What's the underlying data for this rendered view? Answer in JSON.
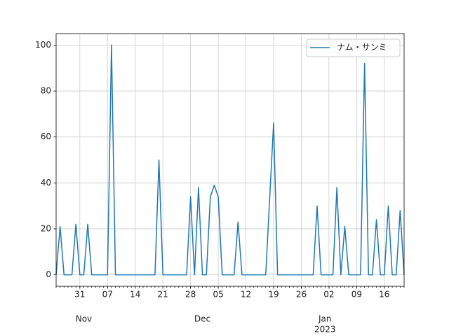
{
  "chart_data": {
    "type": "line",
    "x": [
      "2022-10-25",
      "2022-10-26",
      "2022-10-27",
      "2022-10-28",
      "2022-10-29",
      "2022-10-30",
      "2022-10-31",
      "2022-11-01",
      "2022-11-02",
      "2022-11-03",
      "2022-11-04",
      "2022-11-05",
      "2022-11-06",
      "2022-11-07",
      "2022-11-08",
      "2022-11-09",
      "2022-11-10",
      "2022-11-11",
      "2022-11-12",
      "2022-11-13",
      "2022-11-14",
      "2022-11-15",
      "2022-11-16",
      "2022-11-17",
      "2022-11-18",
      "2022-11-19",
      "2022-11-20",
      "2022-11-21",
      "2022-11-22",
      "2022-11-23",
      "2022-11-24",
      "2022-11-25",
      "2022-11-26",
      "2022-11-27",
      "2022-11-28",
      "2022-11-29",
      "2022-11-30",
      "2022-12-01",
      "2022-12-02",
      "2022-12-03",
      "2022-12-04",
      "2022-12-05",
      "2022-12-06",
      "2022-12-07",
      "2022-12-08",
      "2022-12-09",
      "2022-12-10",
      "2022-12-11",
      "2022-12-12",
      "2022-12-13",
      "2022-12-14",
      "2022-12-15",
      "2022-12-16",
      "2022-12-17",
      "2022-12-18",
      "2022-12-19",
      "2022-12-20",
      "2022-12-21",
      "2022-12-22",
      "2022-12-23",
      "2022-12-24",
      "2022-12-25",
      "2022-12-26",
      "2022-12-27",
      "2022-12-28",
      "2022-12-29",
      "2022-12-30",
      "2022-12-31",
      "2023-01-01",
      "2023-01-02",
      "2023-01-03",
      "2023-01-04",
      "2023-01-05",
      "2023-01-06",
      "2023-01-07",
      "2023-01-08",
      "2023-01-09",
      "2023-01-10",
      "2023-01-11",
      "2023-01-12",
      "2023-01-13",
      "2023-01-14",
      "2023-01-15",
      "2023-01-16",
      "2023-01-17",
      "2023-01-18",
      "2023-01-19",
      "2023-01-20",
      "2023-01-21"
    ],
    "series": [
      {
        "name": "ナム・サンミ",
        "color": "#1f77b4",
        "values": [
          0,
          21,
          0,
          0,
          0,
          22,
          0,
          0,
          22,
          0,
          0,
          0,
          0,
          0,
          100,
          0,
          0,
          0,
          0,
          0,
          0,
          0,
          0,
          0,
          0,
          0,
          50,
          0,
          0,
          0,
          0,
          0,
          0,
          0,
          34,
          0,
          38,
          0,
          0,
          34,
          39,
          34,
          0,
          0,
          0,
          0,
          23,
          0,
          0,
          0,
          0,
          0,
          0,
          0,
          33,
          66,
          0,
          0,
          0,
          0,
          0,
          0,
          0,
          0,
          0,
          0,
          30,
          0,
          0,
          0,
          0,
          38,
          0,
          21,
          0,
          0,
          0,
          0,
          92,
          0,
          0,
          24,
          0,
          0,
          30,
          0,
          0,
          28,
          0
        ]
      }
    ],
    "xlim": [
      "2022-10-25",
      "2023-01-21"
    ],
    "xticks": [
      {
        "value": "2022-10-31",
        "label": "31"
      },
      {
        "value": "2022-11-07",
        "label": "07"
      },
      {
        "value": "2022-11-14",
        "label": "14"
      },
      {
        "value": "2022-11-21",
        "label": "21"
      },
      {
        "value": "2022-11-28",
        "label": "28"
      },
      {
        "value": "2022-12-05",
        "label": "05"
      },
      {
        "value": "2022-12-12",
        "label": "12"
      },
      {
        "value": "2022-12-19",
        "label": "19"
      },
      {
        "value": "2022-12-26",
        "label": "26"
      },
      {
        "value": "2023-01-02",
        "label": "02"
      },
      {
        "value": "2023-01-09",
        "label": "09"
      },
      {
        "value": "2023-01-16",
        "label": "16"
      }
    ],
    "month_ticks": [
      {
        "value": "2022-11-01",
        "label": [
          "Nov"
        ]
      },
      {
        "value": "2022-12-01",
        "label": [
          "Dec"
        ]
      },
      {
        "value": "2023-01-01",
        "label": [
          "Jan",
          "2023"
        ]
      }
    ],
    "ylim": [
      -5,
      105
    ],
    "yticks": [
      0,
      20,
      40,
      60,
      80,
      100
    ],
    "grid": true,
    "legend": "upper right"
  }
}
